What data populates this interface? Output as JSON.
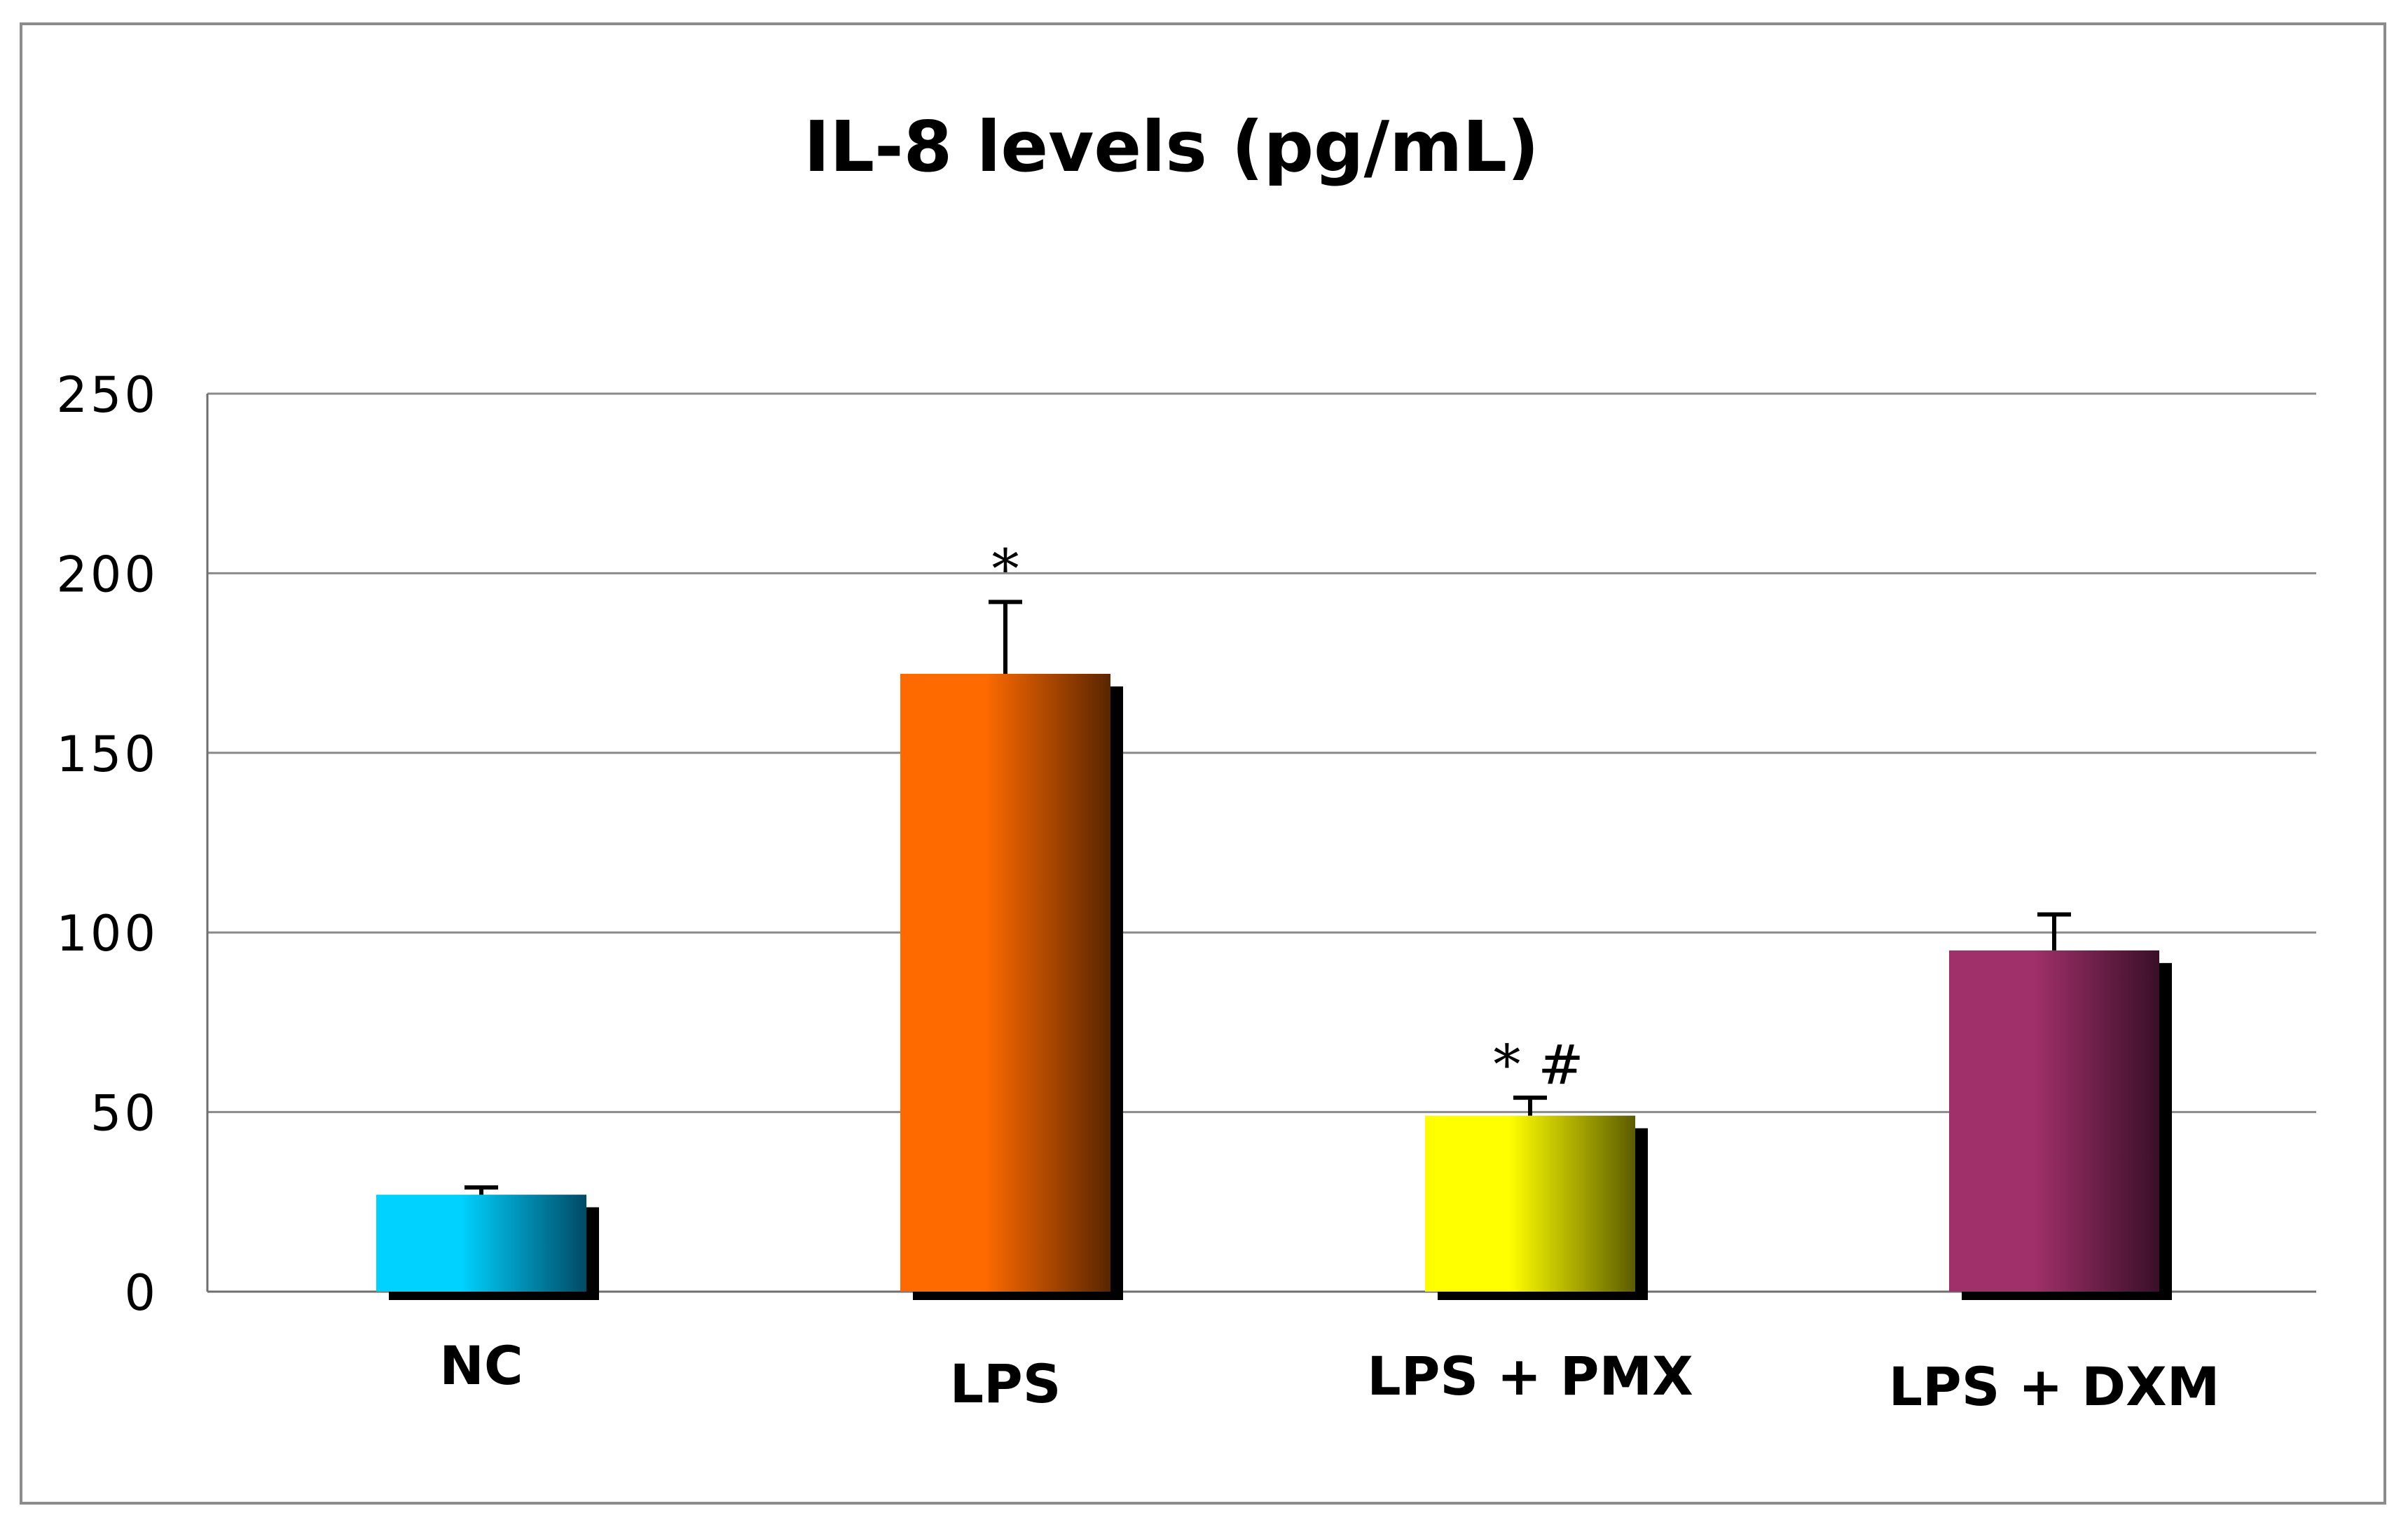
{
  "chart_data": {
    "type": "bar",
    "title": "IL-8 levels (pg/mL)",
    "xlabel": "",
    "ylabel": "",
    "categories": [
      "NC",
      "LPS",
      "LPS + PMX",
      "LPS + DXM"
    ],
    "series": [
      {
        "values": [
          27,
          172,
          49,
          95
        ],
        "error": [
          2,
          20,
          5,
          10
        ]
      }
    ],
    "annotations": [
      "",
      "*",
      "* #",
      ""
    ],
    "ylim": [
      0,
      250
    ],
    "yticks": [
      0,
      50,
      100,
      150,
      200,
      250
    ],
    "ytick_labels": [
      "0",
      "50",
      "100",
      "150",
      "200",
      "250"
    ],
    "grid": true,
    "legend": "none",
    "bar_colors": [
      {
        "light": "#00d2ff",
        "dark": "#004a66"
      },
      {
        "light": "#ff6a00",
        "dark": "#5a2500"
      },
      {
        "light": "#ffff00",
        "dark": "#5c5c00"
      },
      {
        "light": "#a0306a",
        "dark": "#3a0f28"
      }
    ],
    "shadow_color": "#000000"
  }
}
